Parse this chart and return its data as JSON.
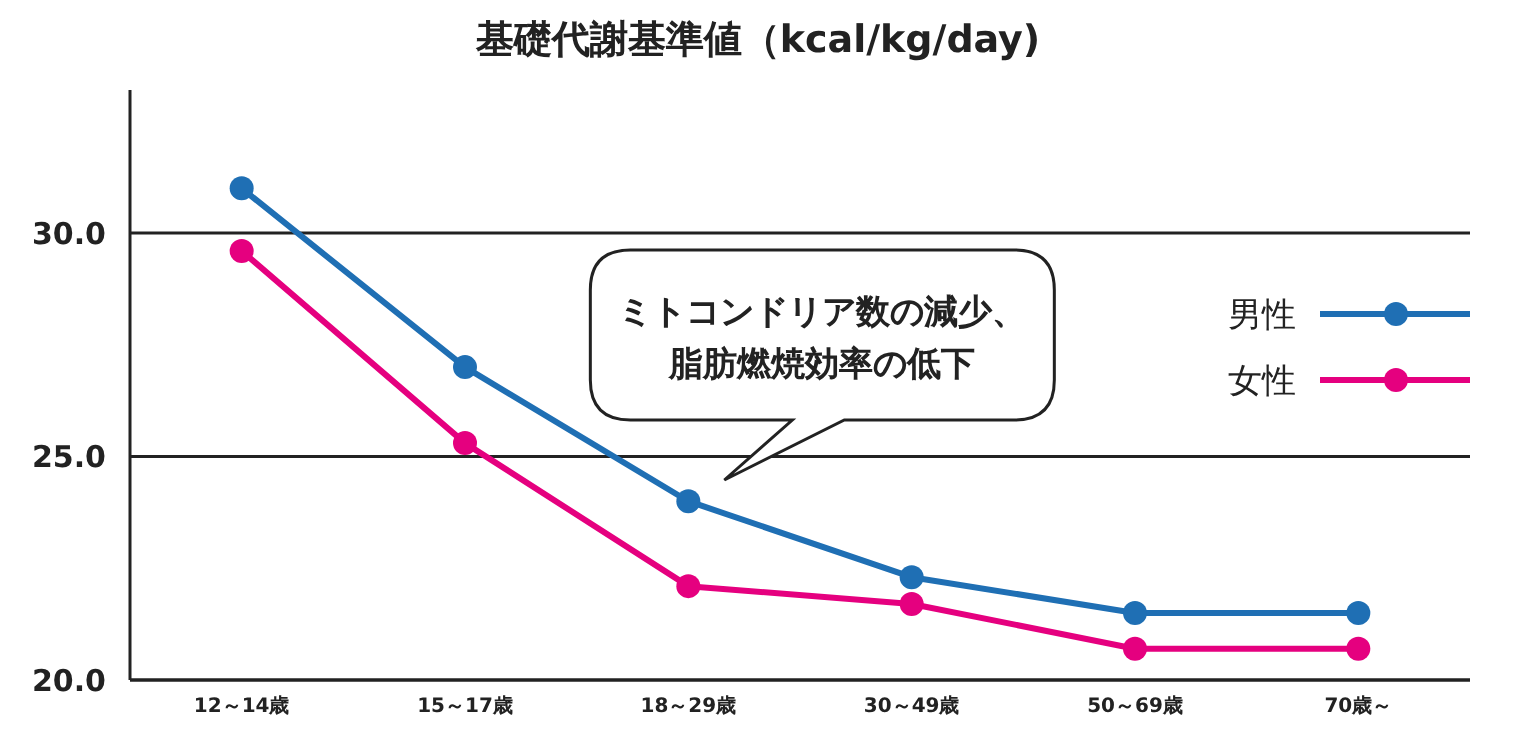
{
  "chart_data": {
    "type": "line",
    "title": "基礎代謝基準値（kcal/kg/day)",
    "categories": [
      "12～14歳",
      "15～17歳",
      "18～29歳",
      "30～49歳",
      "50～69歳",
      "70歳～"
    ],
    "series": [
      {
        "name": "男性",
        "color": "#1f6fb4",
        "values": [
          31.0,
          27.0,
          24.0,
          22.3,
          21.5,
          21.5
        ]
      },
      {
        "name": "女性",
        "color": "#e5007f",
        "values": [
          29.6,
          25.3,
          22.1,
          21.7,
          20.7,
          20.7
        ]
      }
    ],
    "ylim": [
      20,
      33.2
    ],
    "yticks": [
      {
        "value": 20,
        "label": "20.0"
      },
      {
        "value": 25,
        "label": "25.0"
      },
      {
        "value": 30,
        "label": "30.0"
      }
    ],
    "grid": "y",
    "legend": "right",
    "marker": "circle",
    "line_style": "solid",
    "annotations": [
      "ミトコンドリア数の減少、脂肪燃焼効率の低下"
    ]
  }
}
